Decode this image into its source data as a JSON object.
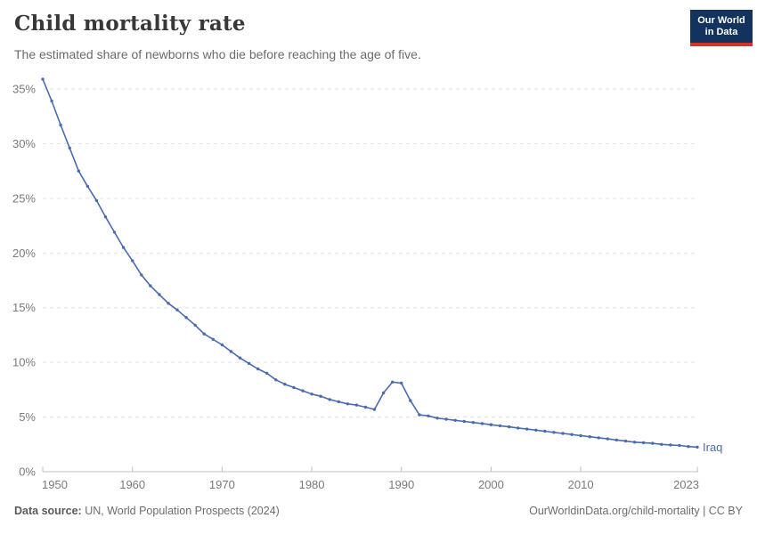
{
  "header": {
    "title": "Child mortality rate",
    "subtitle": "The estimated share of newborns who die before reaching the age of five.",
    "logo": {
      "line1": "Our World",
      "line2": "in Data",
      "bg_color": "#12335e",
      "accent_color": "#d0342c"
    }
  },
  "footer": {
    "source_label": "Data source:",
    "source_text": " UN, World Population Prospects (2024)",
    "credit": "OurWorldinData.org/child-mortality | CC BY"
  },
  "chart_data": {
    "type": "line",
    "title": "Child mortality rate",
    "unit": "%",
    "grid": "horizontal-dashed",
    "legend": "end-of-line-label",
    "ylim": [
      0,
      35
    ],
    "yticks": [
      0,
      5,
      10,
      15,
      20,
      25,
      30,
      35
    ],
    "y_tick_labels": [
      "0%",
      "5%",
      "10%",
      "15%",
      "20%",
      "25%",
      "30%",
      "35%"
    ],
    "xticks": [
      1950,
      1960,
      1970,
      1980,
      1990,
      2000,
      2010,
      2023
    ],
    "x_tick_labels": [
      "1950",
      "1960",
      "1970",
      "1980",
      "1990",
      "2000",
      "2010",
      "2023"
    ],
    "x": [
      1950,
      1951,
      1952,
      1953,
      1954,
      1955,
      1956,
      1957,
      1958,
      1959,
      1960,
      1961,
      1962,
      1963,
      1964,
      1965,
      1966,
      1967,
      1968,
      1969,
      1970,
      1971,
      1972,
      1973,
      1974,
      1975,
      1976,
      1977,
      1978,
      1979,
      1980,
      1981,
      1982,
      1983,
      1984,
      1985,
      1986,
      1987,
      1988,
      1989,
      1990,
      1991,
      1992,
      1993,
      1994,
      1995,
      1996,
      1997,
      1998,
      1999,
      2000,
      2001,
      2002,
      2003,
      2004,
      2005,
      2006,
      2007,
      2008,
      2009,
      2010,
      2011,
      2012,
      2013,
      2014,
      2015,
      2016,
      2017,
      2018,
      2019,
      2020,
      2021,
      2022,
      2023
    ],
    "series": [
      {
        "name": "Iraq",
        "color": "#4a6cae",
        "values": [
          35.9,
          33.9,
          31.7,
          29.6,
          27.5,
          26.1,
          24.8,
          23.3,
          21.9,
          20.5,
          19.3,
          18.0,
          17.0,
          16.2,
          15.4,
          14.8,
          14.1,
          13.4,
          12.6,
          12.1,
          11.6,
          11.0,
          10.4,
          9.9,
          9.4,
          9.0,
          8.4,
          8.0,
          7.7,
          7.4,
          7.1,
          6.9,
          6.6,
          6.4,
          6.2,
          6.1,
          5.9,
          5.7,
          7.2,
          8.2,
          8.1,
          6.5,
          5.2,
          5.1,
          4.9,
          4.8,
          4.7,
          4.6,
          4.5,
          4.4,
          4.3,
          4.2,
          4.1,
          4.0,
          3.9,
          3.8,
          3.7,
          3.6,
          3.5,
          3.4,
          3.3,
          3.2,
          3.1,
          3.0,
          2.9,
          2.8,
          2.7,
          2.65,
          2.6,
          2.5,
          2.45,
          2.4,
          2.3,
          2.25
        ]
      }
    ],
    "style": {
      "grid_color": "#e2e2e2",
      "axis_color": "#c0c0c0",
      "tick_text_color": "#7a7a7a"
    }
  }
}
